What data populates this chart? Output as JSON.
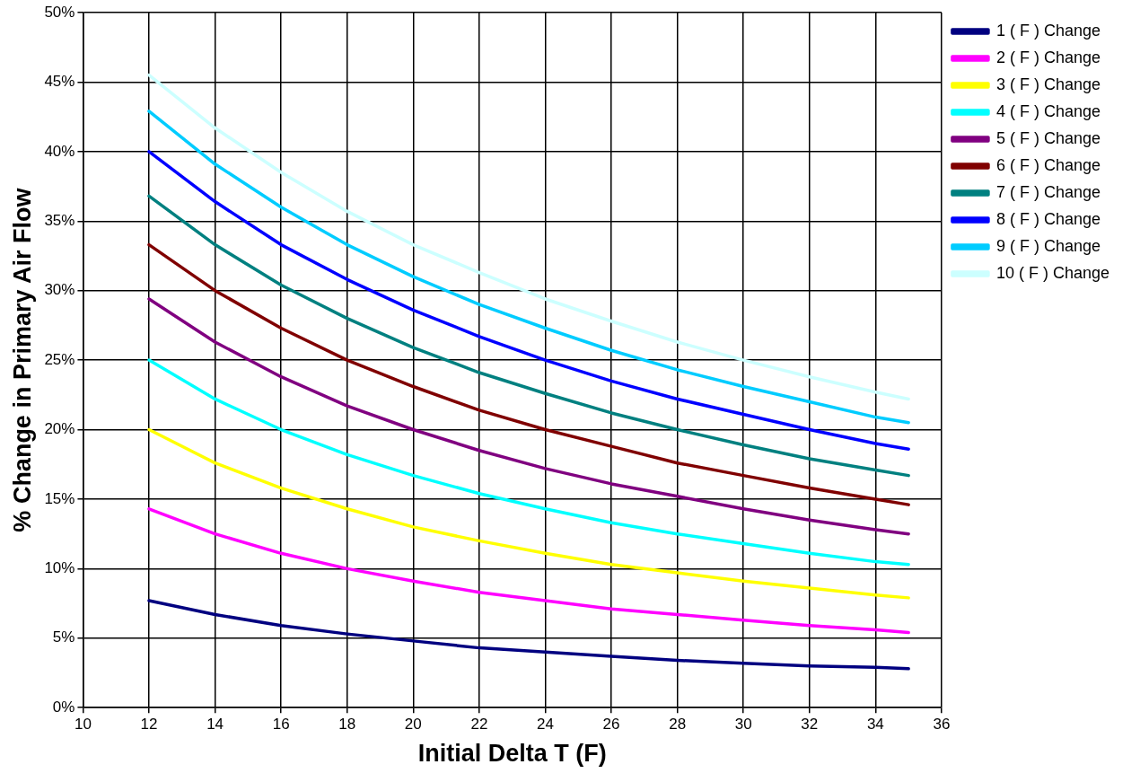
{
  "chart_data": {
    "type": "line",
    "xlabel": "Initial Delta T (F)",
    "ylabel": "% Change in Primary Air Flow",
    "x": [
      12,
      14,
      16,
      18,
      20,
      22,
      24,
      26,
      28,
      30,
      32,
      34,
      35
    ],
    "series": [
      {
        "name": "1 ( F ) Change",
        "color": "#000080",
        "values": [
          7.7,
          6.7,
          5.9,
          5.3,
          4.8,
          4.3,
          4.0,
          3.7,
          3.4,
          3.2,
          3.0,
          2.9,
          2.8
        ]
      },
      {
        "name": "2 ( F ) Change",
        "color": "#ff00ff",
        "values": [
          14.3,
          12.5,
          11.1,
          10.0,
          9.1,
          8.3,
          7.7,
          7.1,
          6.7,
          6.3,
          5.9,
          5.6,
          5.4
        ]
      },
      {
        "name": "3 ( F ) Change",
        "color": "#ffff00",
        "values": [
          20.0,
          17.6,
          15.8,
          14.3,
          13.0,
          12.0,
          11.1,
          10.3,
          9.7,
          9.1,
          8.6,
          8.1,
          7.9
        ]
      },
      {
        "name": "4 ( F ) Change",
        "color": "#00ffff",
        "values": [
          25.0,
          22.2,
          20.0,
          18.2,
          16.7,
          15.4,
          14.3,
          13.3,
          12.5,
          11.8,
          11.1,
          10.5,
          10.3
        ]
      },
      {
        "name": "5 ( F ) Change",
        "color": "#800080",
        "values": [
          29.4,
          26.3,
          23.8,
          21.7,
          20.0,
          18.5,
          17.2,
          16.1,
          15.2,
          14.3,
          13.5,
          12.8,
          12.5
        ]
      },
      {
        "name": "6 ( F ) Change",
        "color": "#800000",
        "values": [
          33.3,
          30.0,
          27.3,
          25.0,
          23.1,
          21.4,
          20.0,
          18.8,
          17.6,
          16.7,
          15.8,
          15.0,
          14.6
        ]
      },
      {
        "name": "7 ( F ) Change",
        "color": "#008080",
        "values": [
          36.8,
          33.3,
          30.4,
          28.0,
          25.9,
          24.1,
          22.6,
          21.2,
          20.0,
          18.9,
          17.9,
          17.1,
          16.7
        ]
      },
      {
        "name": "8 ( F ) Change",
        "color": "#0000ff",
        "values": [
          40.0,
          36.4,
          33.3,
          30.8,
          28.6,
          26.7,
          25.0,
          23.5,
          22.2,
          21.1,
          20.0,
          19.0,
          18.6
        ]
      },
      {
        "name": "9 ( F ) Change",
        "color": "#00ccff",
        "values": [
          42.9,
          39.1,
          36.0,
          33.3,
          31.0,
          29.0,
          27.3,
          25.7,
          24.3,
          23.1,
          22.0,
          20.9,
          20.5
        ]
      },
      {
        "name": "10 ( F ) Change",
        "color": "#ccffff",
        "values": [
          45.5,
          41.7,
          38.5,
          35.7,
          33.3,
          31.3,
          29.4,
          27.8,
          26.3,
          25.0,
          23.8,
          22.7,
          22.2
        ]
      }
    ],
    "xlim": [
      10,
      36
    ],
    "xticks": [
      10,
      12,
      14,
      16,
      18,
      20,
      22,
      24,
      26,
      28,
      30,
      32,
      34,
      36
    ],
    "ylim": [
      0,
      50
    ],
    "yticks": [
      {
        "value": 0,
        "label": "0%"
      },
      {
        "value": 5,
        "label": "5%"
      },
      {
        "value": 10,
        "label": "10%"
      },
      {
        "value": 15,
        "label": "15%"
      },
      {
        "value": 20,
        "label": "20%"
      },
      {
        "value": 25,
        "label": "25%"
      },
      {
        "value": 30,
        "label": "30%"
      },
      {
        "value": 35,
        "label": "35%"
      },
      {
        "value": 40,
        "label": "40%"
      },
      {
        "value": 45,
        "label": "45%"
      },
      {
        "value": 50,
        "label": "50%"
      }
    ],
    "grid": true,
    "legend": "right",
    "marker": "none",
    "line_style": "solid"
  }
}
